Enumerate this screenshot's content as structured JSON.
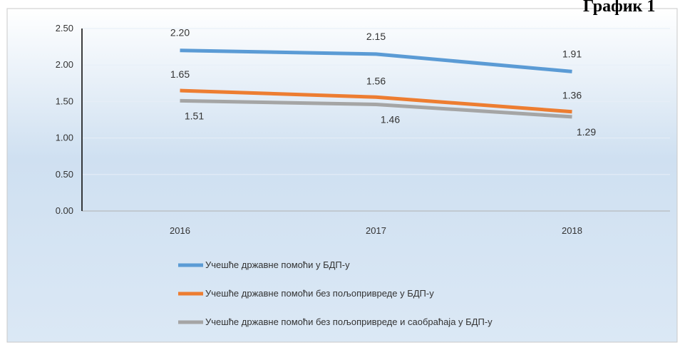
{
  "chart_data": {
    "type": "line",
    "title": "График 1",
    "categories": [
      "2016",
      "2017",
      "2018"
    ],
    "series": [
      {
        "name": "Учешће државне помоћи у БДП-у",
        "color": "#5b9bd5",
        "values": [
          2.2,
          2.15,
          1.91
        ],
        "value_labels": [
          "2.20",
          "2.15",
          "1.91"
        ]
      },
      {
        "name": "Учешће државне помоћи без пољопривреде у БДП-у",
        "color": "#ed7d31",
        "values": [
          1.65,
          1.56,
          1.36
        ],
        "value_labels": [
          "1.65",
          "1.56",
          "1.36"
        ]
      },
      {
        "name": "Учешће државне помоћи без пољопривреде и саобраћаја у БДП-у",
        "color": "#a5a5a5",
        "values": [
          1.51,
          1.46,
          1.29
        ],
        "value_labels": [
          "1.51",
          "1.46",
          "1.29"
        ]
      }
    ],
    "ylim": [
      0,
      2.5
    ],
    "yticks": [
      {
        "value": 0,
        "label": "0.00"
      },
      {
        "value": 0.5,
        "label": "0.50"
      },
      {
        "value": 1,
        "label": "1.00"
      },
      {
        "value": 1.5,
        "label": "1.50"
      },
      {
        "value": 2,
        "label": "2.00"
      },
      {
        "value": 2.5,
        "label": "2.50"
      }
    ],
    "grid": true,
    "legend": "bottom"
  }
}
